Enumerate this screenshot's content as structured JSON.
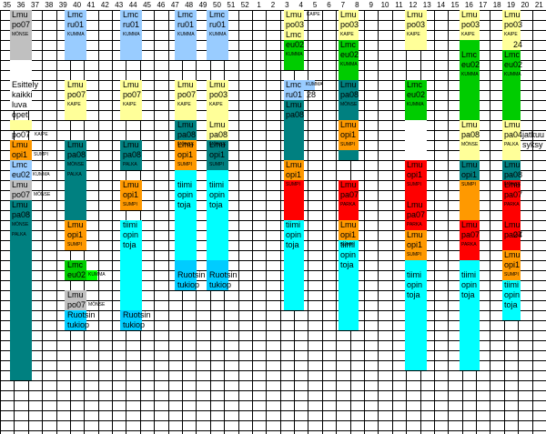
{
  "weeks": [
    "35",
    "36",
    "37",
    "38",
    "39",
    "40",
    "41",
    "42",
    "43",
    "44",
    "45",
    "46",
    "47",
    "48",
    "49",
    "50",
    "51",
    "52",
    "1",
    "2",
    "3",
    "4",
    "5",
    "6",
    "7",
    "8",
    "9",
    "10",
    "11",
    "12",
    "13",
    "14",
    "15",
    "16",
    "17",
    "18",
    "19",
    "20",
    "21"
  ],
  "colors": {
    "grey": "#c0c0c0",
    "teal": "#008080",
    "light_blue": "#99ccff",
    "pale_yellow": "#ffff99",
    "orange": "#ff9900",
    "cyan": "#00ffff",
    "green": "#00cc00",
    "red": "#ff0000",
    "bright_green": "#00ff00",
    "sky_blue": "#00ccff",
    "grid_line": "#000000"
  },
  "column_a": {
    "r1": "Lmu",
    "r2": "po07",
    "r3": "MÖNSE",
    "r4": "Esittely",
    "r5": "kaikki",
    "r6": "luva",
    "r7": "opet",
    "r8": "po07",
    "r8b": "KAIPE",
    "r9": "Lmu",
    "r10": "opi1",
    "r10b": "SUMPI",
    "r11": "Lmc",
    "r12": "eu02",
    "r12b": "KUMMA",
    "r13": "Lmu",
    "r14": "po07",
    "r14b": "MÖNSE",
    "r15": "Lmu",
    "r16": "pa08",
    "r17": "MÖNSE",
    "r18": "PALKA"
  },
  "column_b": {
    "r1": "Lmc",
    "r2": "ru01",
    "r3": "KUMMA",
    "r4": "Lmu",
    "r5": "po07",
    "r6": "KAIPE",
    "r8": "Lmu",
    "r9": "pa08",
    "r10": "MÖNSE",
    "r11": "PALKA",
    "r13": "Lmu",
    "r14": "opi1",
    "r15": "SUMPI",
    "r17": "Lmc",
    "r18": "eu02",
    "r18b": "KUMMA",
    "r19": "Lmu",
    "r20": "po07",
    "r20b": "MÖNSE",
    "r21": "Ruotsin",
    "r22": "tukiop"
  },
  "column_c": {
    "r1": "Lmc",
    "r2": "ru01",
    "r3": "KUMMA",
    "r4": "Lmu",
    "r5": "po07",
    "r6": "KAIPE",
    "r7": "Lmu",
    "r8": "pa08",
    "r9": "PALKA",
    "r11": "Lmu",
    "r12": "opi1",
    "r13": "SUMPI",
    "r14": "tiimi",
    "r15": "opin",
    "r16": "toja",
    "r21": "Ruotsin",
    "r22": "tukiop"
  },
  "column_d": {
    "r1": "Lmc",
    "r2": "ru01",
    "r3": "KUMMA",
    "r4": "Lmu",
    "r5": "po07",
    "r6": "KAIPE",
    "r7": "Lmu",
    "r8": "pa08",
    "r9": "MÖNSE",
    "r10": "Lmu",
    "r11": "opi1",
    "r12": "SUMPI",
    "r13": "tiimi",
    "r14": "opin",
    "r15": "toja",
    "r19": "Ruotsin",
    "r20": "tukiop"
  },
  "column_e": {
    "r1": "Lmc",
    "r2": "ru01",
    "r3": "KUMMA",
    "r4": "Lmu",
    "r5": "po03",
    "r6": "KAIPE",
    "r7": "Lmu",
    "r8": "pa08",
    "r9": "MÖNSE",
    "r10": "Lmu",
    "r11": "opi1",
    "r12": "SUMPI",
    "r13": "tiimi",
    "r14": "opin",
    "r15": "toja",
    "r19": "Ruotsin",
    "r20": "tukiop"
  },
  "column_f": {
    "r1": "Lmu",
    "r1b": "KAIPE",
    "r2": "po03",
    "r3": "Lmc",
    "r4": "eu02",
    "r5": "KUMMA",
    "r7": "Lmc",
    "r7b": "KUMMA",
    "r8": "ru01",
    "r8b": "28",
    "r9": "Lmu",
    "r10": "pa08",
    "r15": "Lmu",
    "r16": "opi1",
    "r17": "SUMPI",
    "r19": "tiimi",
    "r20": "opin",
    "r21": "toja"
  },
  "column_g": {
    "r1": "Lmu",
    "r2": "po03",
    "r3": "KAIPE",
    "r4": "Lmc",
    "r5": "eu02",
    "r6": "KUMMA",
    "r7": "Lmu",
    "r8": "pa08",
    "r9": "MÖNSE",
    "r10": "Lmu",
    "r11": "opi1",
    "r12": "SUMPI",
    "r13": "Lmu",
    "r14": "pa07",
    "r15": "PARKA",
    "r16": "Lmu",
    "r17": "opi1",
    "r18": "SUMPI",
    "r19": "tiimi",
    "r20": "opin",
    "r21": "toja"
  },
  "column_h": {
    "r1": "Lmu",
    "r2": "po03",
    "r3": "KAIPE",
    "r4": "Lmc",
    "r5": "eu02",
    "r6": "KUMMA",
    "r7": "Lmc",
    "r8": "eu02",
    "r9": "KUMMA",
    "r10": "Lmu",
    "r11": "pa04",
    "r12": "PALKA",
    "r13": "Lmu",
    "r14": "opi1",
    "r15": "SUMPI",
    "r16": "Lmu",
    "r17": "pa07",
    "r18": "PARKA",
    "r19": "Lmu",
    "r20": "opi1",
    "r21": "SUMPI",
    "r22": "tiimi",
    "r23": "opin",
    "r24": "toja"
  },
  "column_i": {
    "r1": "Lmu",
    "r2": "po03",
    "r3": "KAIPE",
    "r4": "Lmc",
    "r5": "eu02",
    "r6": "KUMMA",
    "r7": "Lmu",
    "r8": "pa08",
    "r9": "MÖNSE",
    "r10": "Lmu",
    "r11": "opi1",
    "r12": "SUMPI",
    "r13": "Lmu",
    "r14": "pa07",
    "r15": "PARKA",
    "r16": "Lmu",
    "r17": "opi1",
    "r18": "SUMPI",
    "r19": "tiimi",
    "r20": "opin",
    "r21": "toja"
  },
  "column_j": {
    "r1": "Lmu",
    "r2": "po03",
    "r3": "KAIPE",
    "r4": "24",
    "r5": "Lmc",
    "r6": "eu02",
    "r7": "KUMMA",
    "r8": "Lmu",
    "r9": "pa04",
    "r9b": "jatkuu",
    "r10": "PALKA",
    "r10b": "syksy",
    "r11": "Lmu",
    "r12": "pa08",
    "r13": "MÖNSE",
    "r14": "Lmu",
    "r15": "pa07",
    "r16": "PARKA",
    "r17": "Lmu",
    "r18": "pa07",
    "r19": "24",
    "r20": "Lmu",
    "r21": "opi1",
    "r22": "SUMPI",
    "r23": "tiimi",
    "r24": "opin",
    "r25": "toja"
  }
}
